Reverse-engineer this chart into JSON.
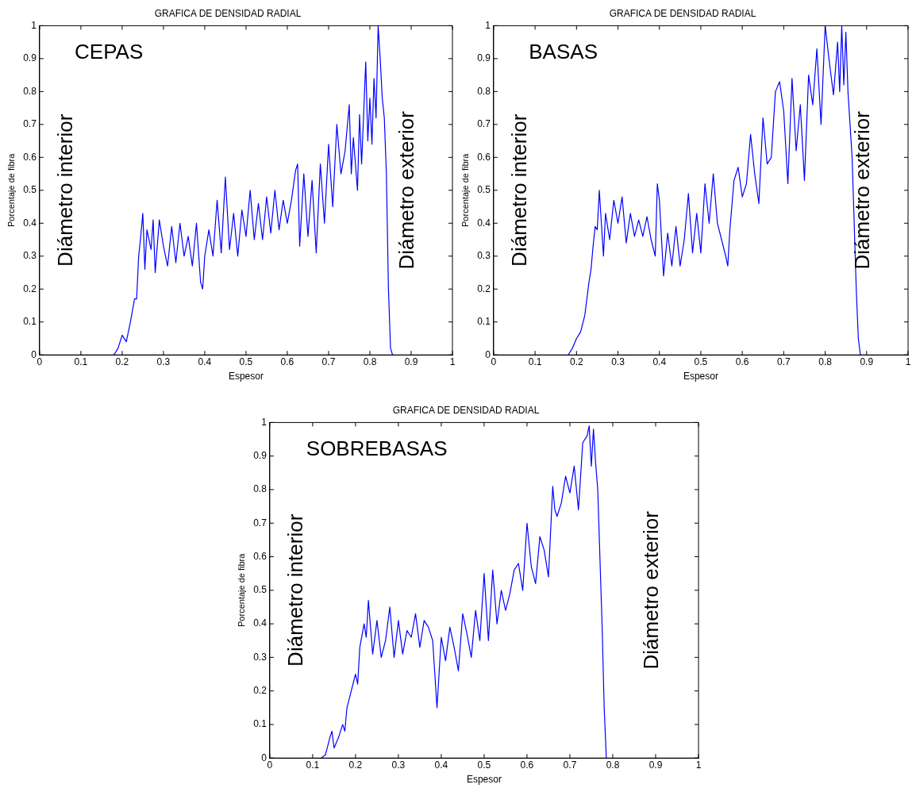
{
  "chart_data": [
    {
      "type": "line",
      "title": "GRAFICA DE DENSIDAD RADIAL",
      "xlabel": "Espesor",
      "ylabel": "Porcentaje de fibra",
      "annotations": [
        "CEPAS",
        "Diámetro interior",
        "Diámetro exterior"
      ],
      "color": "#0000ff",
      "xlim": [
        0,
        1
      ],
      "xticks": [
        0,
        0.1,
        0.2,
        0.3,
        0.4,
        0.5,
        0.6,
        0.7,
        0.8,
        0.9,
        1
      ],
      "ylim": [
        0,
        1
      ],
      "yticks": [
        0,
        0.1,
        0.2,
        0.3,
        0.4,
        0.5,
        0.6,
        0.7,
        0.8,
        0.9,
        1
      ],
      "grid": false,
      "legend": false,
      "marker": "none",
      "line_style": "solid",
      "x": [
        0.18,
        0.19,
        0.2,
        0.21,
        0.22,
        0.23,
        0.235,
        0.24,
        0.245,
        0.25,
        0.255,
        0.26,
        0.27,
        0.275,
        0.28,
        0.29,
        0.3,
        0.31,
        0.32,
        0.33,
        0.34,
        0.35,
        0.36,
        0.37,
        0.38,
        0.39,
        0.395,
        0.4,
        0.41,
        0.42,
        0.43,
        0.44,
        0.45,
        0.46,
        0.47,
        0.48,
        0.49,
        0.5,
        0.51,
        0.52,
        0.53,
        0.54,
        0.55,
        0.56,
        0.57,
        0.58,
        0.59,
        0.6,
        0.61,
        0.62,
        0.625,
        0.63,
        0.64,
        0.65,
        0.66,
        0.67,
        0.68,
        0.69,
        0.7,
        0.71,
        0.72,
        0.73,
        0.74,
        0.75,
        0.755,
        0.76,
        0.77,
        0.775,
        0.78,
        0.79,
        0.795,
        0.8,
        0.805,
        0.81,
        0.815,
        0.82,
        0.825,
        0.83,
        0.835,
        0.84,
        0.845,
        0.85,
        0.855
      ],
      "values": [
        0,
        0.02,
        0.06,
        0.04,
        0.1,
        0.17,
        0.17,
        0.3,
        0.36,
        0.43,
        0.26,
        0.38,
        0.32,
        0.41,
        0.25,
        0.41,
        0.33,
        0.27,
        0.39,
        0.28,
        0.4,
        0.3,
        0.36,
        0.27,
        0.4,
        0.22,
        0.2,
        0.3,
        0.38,
        0.3,
        0.47,
        0.31,
        0.54,
        0.32,
        0.43,
        0.3,
        0.44,
        0.36,
        0.5,
        0.35,
        0.46,
        0.35,
        0.48,
        0.37,
        0.5,
        0.38,
        0.47,
        0.4,
        0.47,
        0.56,
        0.58,
        0.33,
        0.55,
        0.36,
        0.53,
        0.31,
        0.58,
        0.4,
        0.64,
        0.45,
        0.7,
        0.55,
        0.62,
        0.76,
        0.55,
        0.66,
        0.5,
        0.73,
        0.58,
        0.89,
        0.65,
        0.78,
        0.64,
        0.84,
        0.72,
        1,
        0.9,
        0.78,
        0.72,
        0.55,
        0.2,
        0.02,
        0
      ]
    },
    {
      "type": "line",
      "title": "GRAFICA DE DENSIDAD RADIAL",
      "xlabel": "Espesor",
      "ylabel": "Porcentaje de fibra",
      "annotations": [
        "BASAS",
        "Diámetro interior",
        "Diámetro exterior"
      ],
      "color": "#0000ff",
      "xlim": [
        0,
        1
      ],
      "xticks": [
        0,
        0.1,
        0.2,
        0.3,
        0.4,
        0.5,
        0.6,
        0.7,
        0.8,
        0.9,
        1
      ],
      "ylim": [
        0,
        1
      ],
      "yticks": [
        0,
        0.1,
        0.2,
        0.3,
        0.4,
        0.5,
        0.6,
        0.7,
        0.8,
        0.9,
        1
      ],
      "grid": false,
      "legend": false,
      "marker": "none",
      "line_style": "solid",
      "x": [
        0.18,
        0.19,
        0.2,
        0.21,
        0.22,
        0.23,
        0.235,
        0.24,
        0.245,
        0.25,
        0.255,
        0.26,
        0.265,
        0.27,
        0.28,
        0.29,
        0.3,
        0.31,
        0.32,
        0.33,
        0.34,
        0.35,
        0.36,
        0.37,
        0.38,
        0.39,
        0.395,
        0.4,
        0.41,
        0.42,
        0.43,
        0.44,
        0.45,
        0.46,
        0.47,
        0.48,
        0.49,
        0.5,
        0.51,
        0.52,
        0.53,
        0.54,
        0.55,
        0.56,
        0.565,
        0.57,
        0.58,
        0.59,
        0.6,
        0.61,
        0.62,
        0.63,
        0.64,
        0.65,
        0.66,
        0.67,
        0.68,
        0.69,
        0.7,
        0.71,
        0.72,
        0.73,
        0.74,
        0.75,
        0.76,
        0.77,
        0.78,
        0.79,
        0.8,
        0.81,
        0.82,
        0.83,
        0.835,
        0.84,
        0.845,
        0.85,
        0.855,
        0.86,
        0.865,
        0.87,
        0.875,
        0.88,
        0.885
      ],
      "values": [
        0,
        0.02,
        0.05,
        0.07,
        0.12,
        0.22,
        0.26,
        0.33,
        0.39,
        0.38,
        0.5,
        0.4,
        0.3,
        0.43,
        0.35,
        0.47,
        0.4,
        0.48,
        0.34,
        0.43,
        0.36,
        0.41,
        0.36,
        0.42,
        0.35,
        0.3,
        0.52,
        0.47,
        0.24,
        0.37,
        0.27,
        0.39,
        0.27,
        0.35,
        0.49,
        0.31,
        0.43,
        0.31,
        0.52,
        0.4,
        0.55,
        0.4,
        0.35,
        0.3,
        0.27,
        0.38,
        0.53,
        0.57,
        0.48,
        0.52,
        0.67,
        0.55,
        0.46,
        0.72,
        0.58,
        0.6,
        0.8,
        0.83,
        0.74,
        0.52,
        0.84,
        0.62,
        0.76,
        0.53,
        0.85,
        0.76,
        0.93,
        0.7,
        1,
        0.89,
        0.79,
        0.95,
        0.8,
        1,
        0.82,
        0.98,
        0.8,
        0.7,
        0.6,
        0.4,
        0.2,
        0.05,
        0
      ]
    },
    {
      "type": "line",
      "title": "GRAFICA DE DENSIDAD RADIAL",
      "xlabel": "Espesor",
      "ylabel": "Porcentaje de fibra",
      "annotations": [
        "SOBREBASAS",
        "Diámetro interior",
        "Diámetro exterior"
      ],
      "color": "#0000ff",
      "xlim": [
        0,
        1
      ],
      "xticks": [
        0,
        0.1,
        0.2,
        0.3,
        0.4,
        0.5,
        0.6,
        0.7,
        0.8,
        0.9,
        1
      ],
      "ylim": [
        0,
        1
      ],
      "yticks": [
        0,
        0.1,
        0.2,
        0.3,
        0.4,
        0.5,
        0.6,
        0.7,
        0.8,
        0.9,
        1
      ],
      "grid": false,
      "legend": false,
      "marker": "none",
      "line_style": "solid",
      "x": [
        0.12,
        0.13,
        0.14,
        0.145,
        0.15,
        0.16,
        0.17,
        0.175,
        0.18,
        0.19,
        0.2,
        0.205,
        0.21,
        0.22,
        0.225,
        0.23,
        0.24,
        0.25,
        0.26,
        0.27,
        0.28,
        0.29,
        0.3,
        0.31,
        0.32,
        0.33,
        0.34,
        0.35,
        0.36,
        0.37,
        0.38,
        0.39,
        0.4,
        0.41,
        0.42,
        0.43,
        0.44,
        0.45,
        0.46,
        0.47,
        0.48,
        0.49,
        0.5,
        0.51,
        0.52,
        0.53,
        0.54,
        0.55,
        0.56,
        0.57,
        0.58,
        0.59,
        0.6,
        0.61,
        0.62,
        0.63,
        0.64,
        0.65,
        0.66,
        0.665,
        0.67,
        0.68,
        0.69,
        0.7,
        0.71,
        0.72,
        0.73,
        0.74,
        0.745,
        0.75,
        0.755,
        0.76,
        0.765,
        0.77,
        0.775,
        0.78,
        0.785
      ],
      "values": [
        0,
        0.01,
        0.06,
        0.08,
        0.03,
        0.06,
        0.1,
        0.08,
        0.15,
        0.2,
        0.25,
        0.22,
        0.33,
        0.4,
        0.36,
        0.47,
        0.31,
        0.41,
        0.3,
        0.35,
        0.45,
        0.3,
        0.41,
        0.31,
        0.38,
        0.36,
        0.43,
        0.33,
        0.41,
        0.39,
        0.35,
        0.15,
        0.36,
        0.29,
        0.39,
        0.33,
        0.26,
        0.43,
        0.37,
        0.3,
        0.44,
        0.35,
        0.55,
        0.35,
        0.56,
        0.4,
        0.5,
        0.44,
        0.49,
        0.56,
        0.58,
        0.5,
        0.7,
        0.57,
        0.52,
        0.66,
        0.62,
        0.54,
        0.81,
        0.74,
        0.72,
        0.76,
        0.84,
        0.79,
        0.87,
        0.74,
        0.94,
        0.96,
        0.99,
        0.87,
        0.98,
        0.88,
        0.8,
        0.6,
        0.4,
        0.15,
        0
      ]
    }
  ]
}
